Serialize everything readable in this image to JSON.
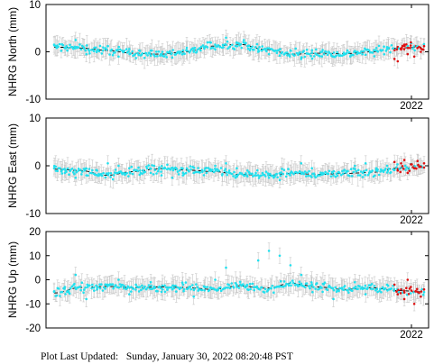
{
  "footer": {
    "label": "Plot Last Updated:",
    "timestamp": "Sunday, January 30, 2022 08:20:48 PST"
  },
  "colors": {
    "point": "#22e0ee",
    "recent_point": "#dd1111",
    "error_bar": "#c8c8c8",
    "trend": "#000000",
    "frame": "#000000"
  },
  "chart_data": [
    {
      "type": "scatter",
      "ylabel": "NHRG North (mm)",
      "ylim": [
        -10,
        10
      ],
      "yticks": [
        -10,
        0,
        10
      ],
      "xtick_labels": [
        "2022"
      ],
      "series": [
        {
          "name": "",
          "values": [
            1.5,
            0.8,
            2.5,
            -0.5,
            0.3,
            1.2,
            -1.0,
            0.6,
            0.2,
            -0.8,
            -0.5,
            -1.2,
            0.3,
            0.0,
            1.0,
            1.5,
            3.0,
            2.0,
            1.2,
            0.0,
            -0.5,
            -0.8,
            0.3,
            -1.5,
            -0.2,
            0.4,
            -1.0,
            -0.6,
            0.2,
            0.5,
            0.8,
            1.0
          ]
        },
        {
          "name": "",
          "values": [
            -1.5,
            -2.0,
            0.5,
            1.5,
            -0.5,
            2.0,
            -1.0,
            0.8,
            0.0,
            1.2
          ]
        }
      ],
      "trend": [
        1.0,
        0.8,
        0.3,
        -0.3,
        -0.5,
        0.0,
        1.2,
        1.6,
        0.5,
        -0.5,
        -0.3,
        -0.4,
        0.0,
        0.8,
        1.0
      ]
    },
    {
      "type": "scatter",
      "ylabel": "NHRG East (mm)",
      "ylim": [
        -10,
        10
      ],
      "yticks": [
        -10,
        0,
        10
      ],
      "xtick_labels": [
        "2022"
      ],
      "series": [
        {
          "name": "",
          "values": [
            -0.5,
            -1.5,
            -2.5,
            -2.0,
            -1.0,
            0.5,
            0.0,
            -0.5,
            -1.0,
            -1.5,
            -2.0,
            -2.5,
            -2.0,
            -1.5,
            -1.0,
            0.0,
            0.5,
            -0.5,
            -1.0,
            -2.0,
            -2.5,
            -3.0,
            -1.5,
            0.5,
            -0.5,
            -1.5,
            -2.0,
            -1.0,
            0.0,
            0.5,
            -0.5,
            0.0
          ]
        },
        {
          "name": "",
          "values": [
            0.8,
            -1.0,
            0.5,
            1.2,
            -1.5,
            0.3,
            -0.5,
            1.0,
            -0.2,
            0.5
          ]
        }
      ],
      "trend": [
        -0.7,
        -1.0,
        -2.0,
        -1.2,
        -0.6,
        -0.9,
        -1.2,
        -1.8,
        -2.0,
        -1.6,
        -1.8,
        -1.6,
        -1.4,
        -0.5,
        -0.3
      ]
    },
    {
      "type": "scatter",
      "ylabel": "NHRG Up (mm)",
      "ylim": [
        -20,
        20
      ],
      "yticks": [
        -20,
        -10,
        0,
        10,
        20
      ],
      "xtick_labels": [
        "2022"
      ],
      "series": [
        {
          "name": "",
          "values": [
            -5.0,
            -3.0,
            2.0,
            -8.0,
            -4.0,
            -2.0,
            0.0,
            -6.0,
            -3.0,
            -1.0,
            -5.0,
            -4.0,
            -2.0,
            -7.0,
            -3.0,
            0.0,
            5.0,
            -2.0,
            -4.0,
            8.0,
            12.0,
            10.0,
            6.0,
            2.0,
            -2.0,
            -5.0,
            -8.0,
            -3.0,
            -1.0,
            -6.0,
            -4.0,
            -2.0
          ]
        },
        {
          "name": "",
          "values": [
            -2.0,
            -6.0,
            -4.0,
            -8.0,
            0.0,
            -3.0,
            -10.0,
            -5.0,
            -7.0,
            -4.0
          ]
        }
      ],
      "trend": [
        -5.5,
        -3.2,
        -2.8,
        -3.3,
        -3.0,
        -3.2,
        -4.0,
        -2.5,
        -3.5,
        -1.5,
        -3.0,
        -4.0,
        -3.3,
        -4.5,
        -5.0
      ]
    }
  ]
}
